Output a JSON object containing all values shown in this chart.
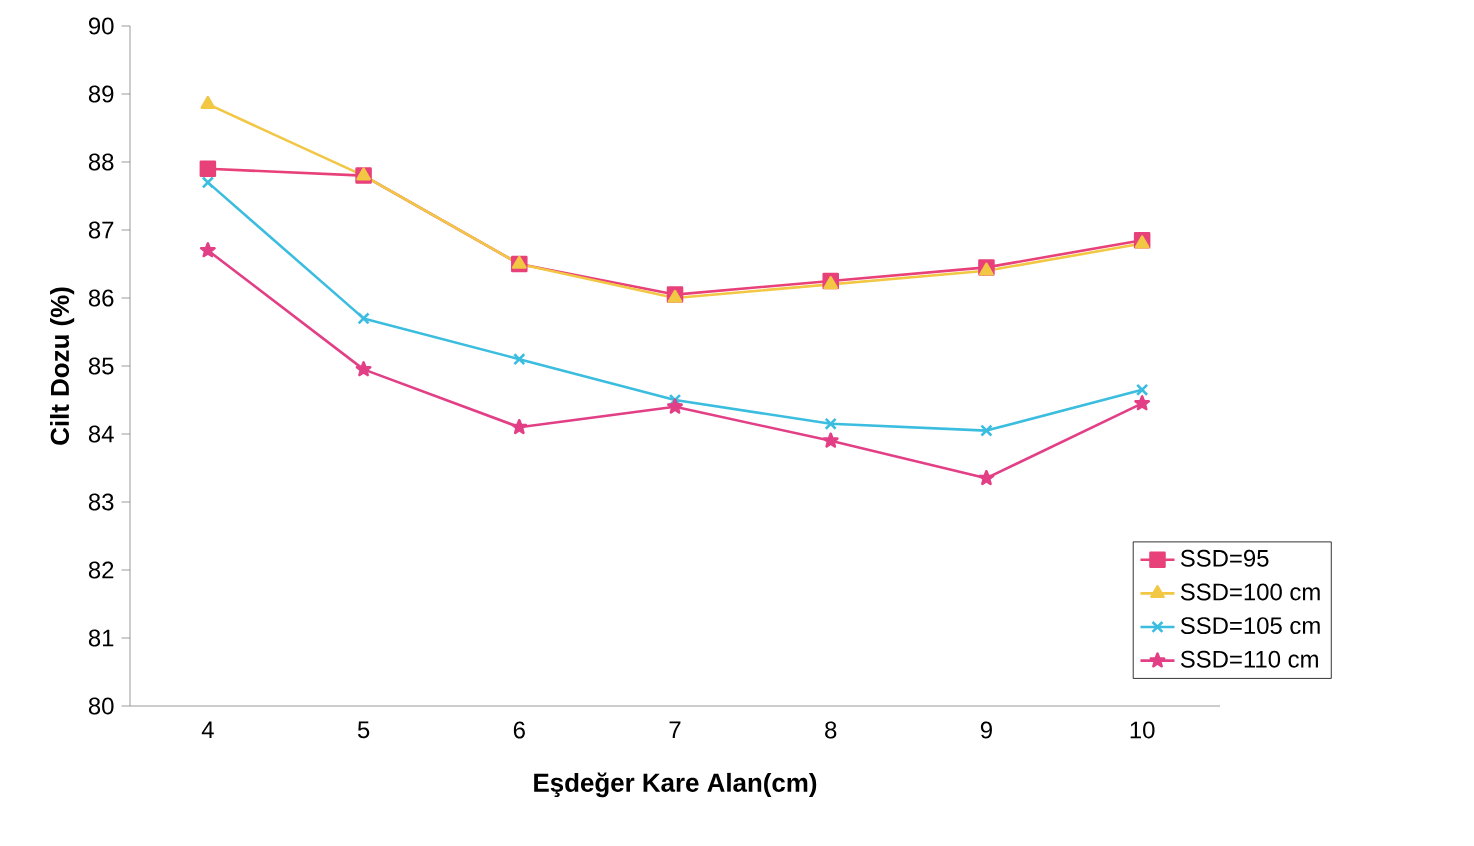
{
  "chart_data": {
    "type": "line",
    "xlabel": "Eşdeğer Kare Alan(cm)",
    "ylabel": "Cilt Dozu (%)",
    "categories": [
      "4",
      "5",
      "6",
      "7",
      "8",
      "9",
      "10"
    ],
    "ylim": [
      80,
      90
    ],
    "yticks": [
      80,
      81,
      82,
      83,
      84,
      85,
      86,
      87,
      88,
      89,
      90
    ],
    "grid": false,
    "legend": "bottom right",
    "series": [
      {
        "name": "SSD=95",
        "color": "#e8417a",
        "marker": "square",
        "values": [
          87.9,
          87.8,
          86.5,
          86.05,
          86.25,
          86.45,
          86.85
        ]
      },
      {
        "name": "SSD=100 cm",
        "color": "#f2c744",
        "marker": "triangle",
        "values": [
          88.85,
          87.8,
          86.5,
          86.0,
          86.2,
          86.4,
          86.8
        ]
      },
      {
        "name": "SSD=105 cm",
        "color": "#3bbde0",
        "marker": "cross",
        "values": [
          87.7,
          85.7,
          85.1,
          84.5,
          84.15,
          84.05,
          84.65
        ]
      },
      {
        "name": "SSD=110 cm",
        "color": "#e23f86",
        "marker": "star",
        "values": [
          86.7,
          84.95,
          84.1,
          84.4,
          83.9,
          83.35,
          84.45
        ]
      }
    ]
  }
}
